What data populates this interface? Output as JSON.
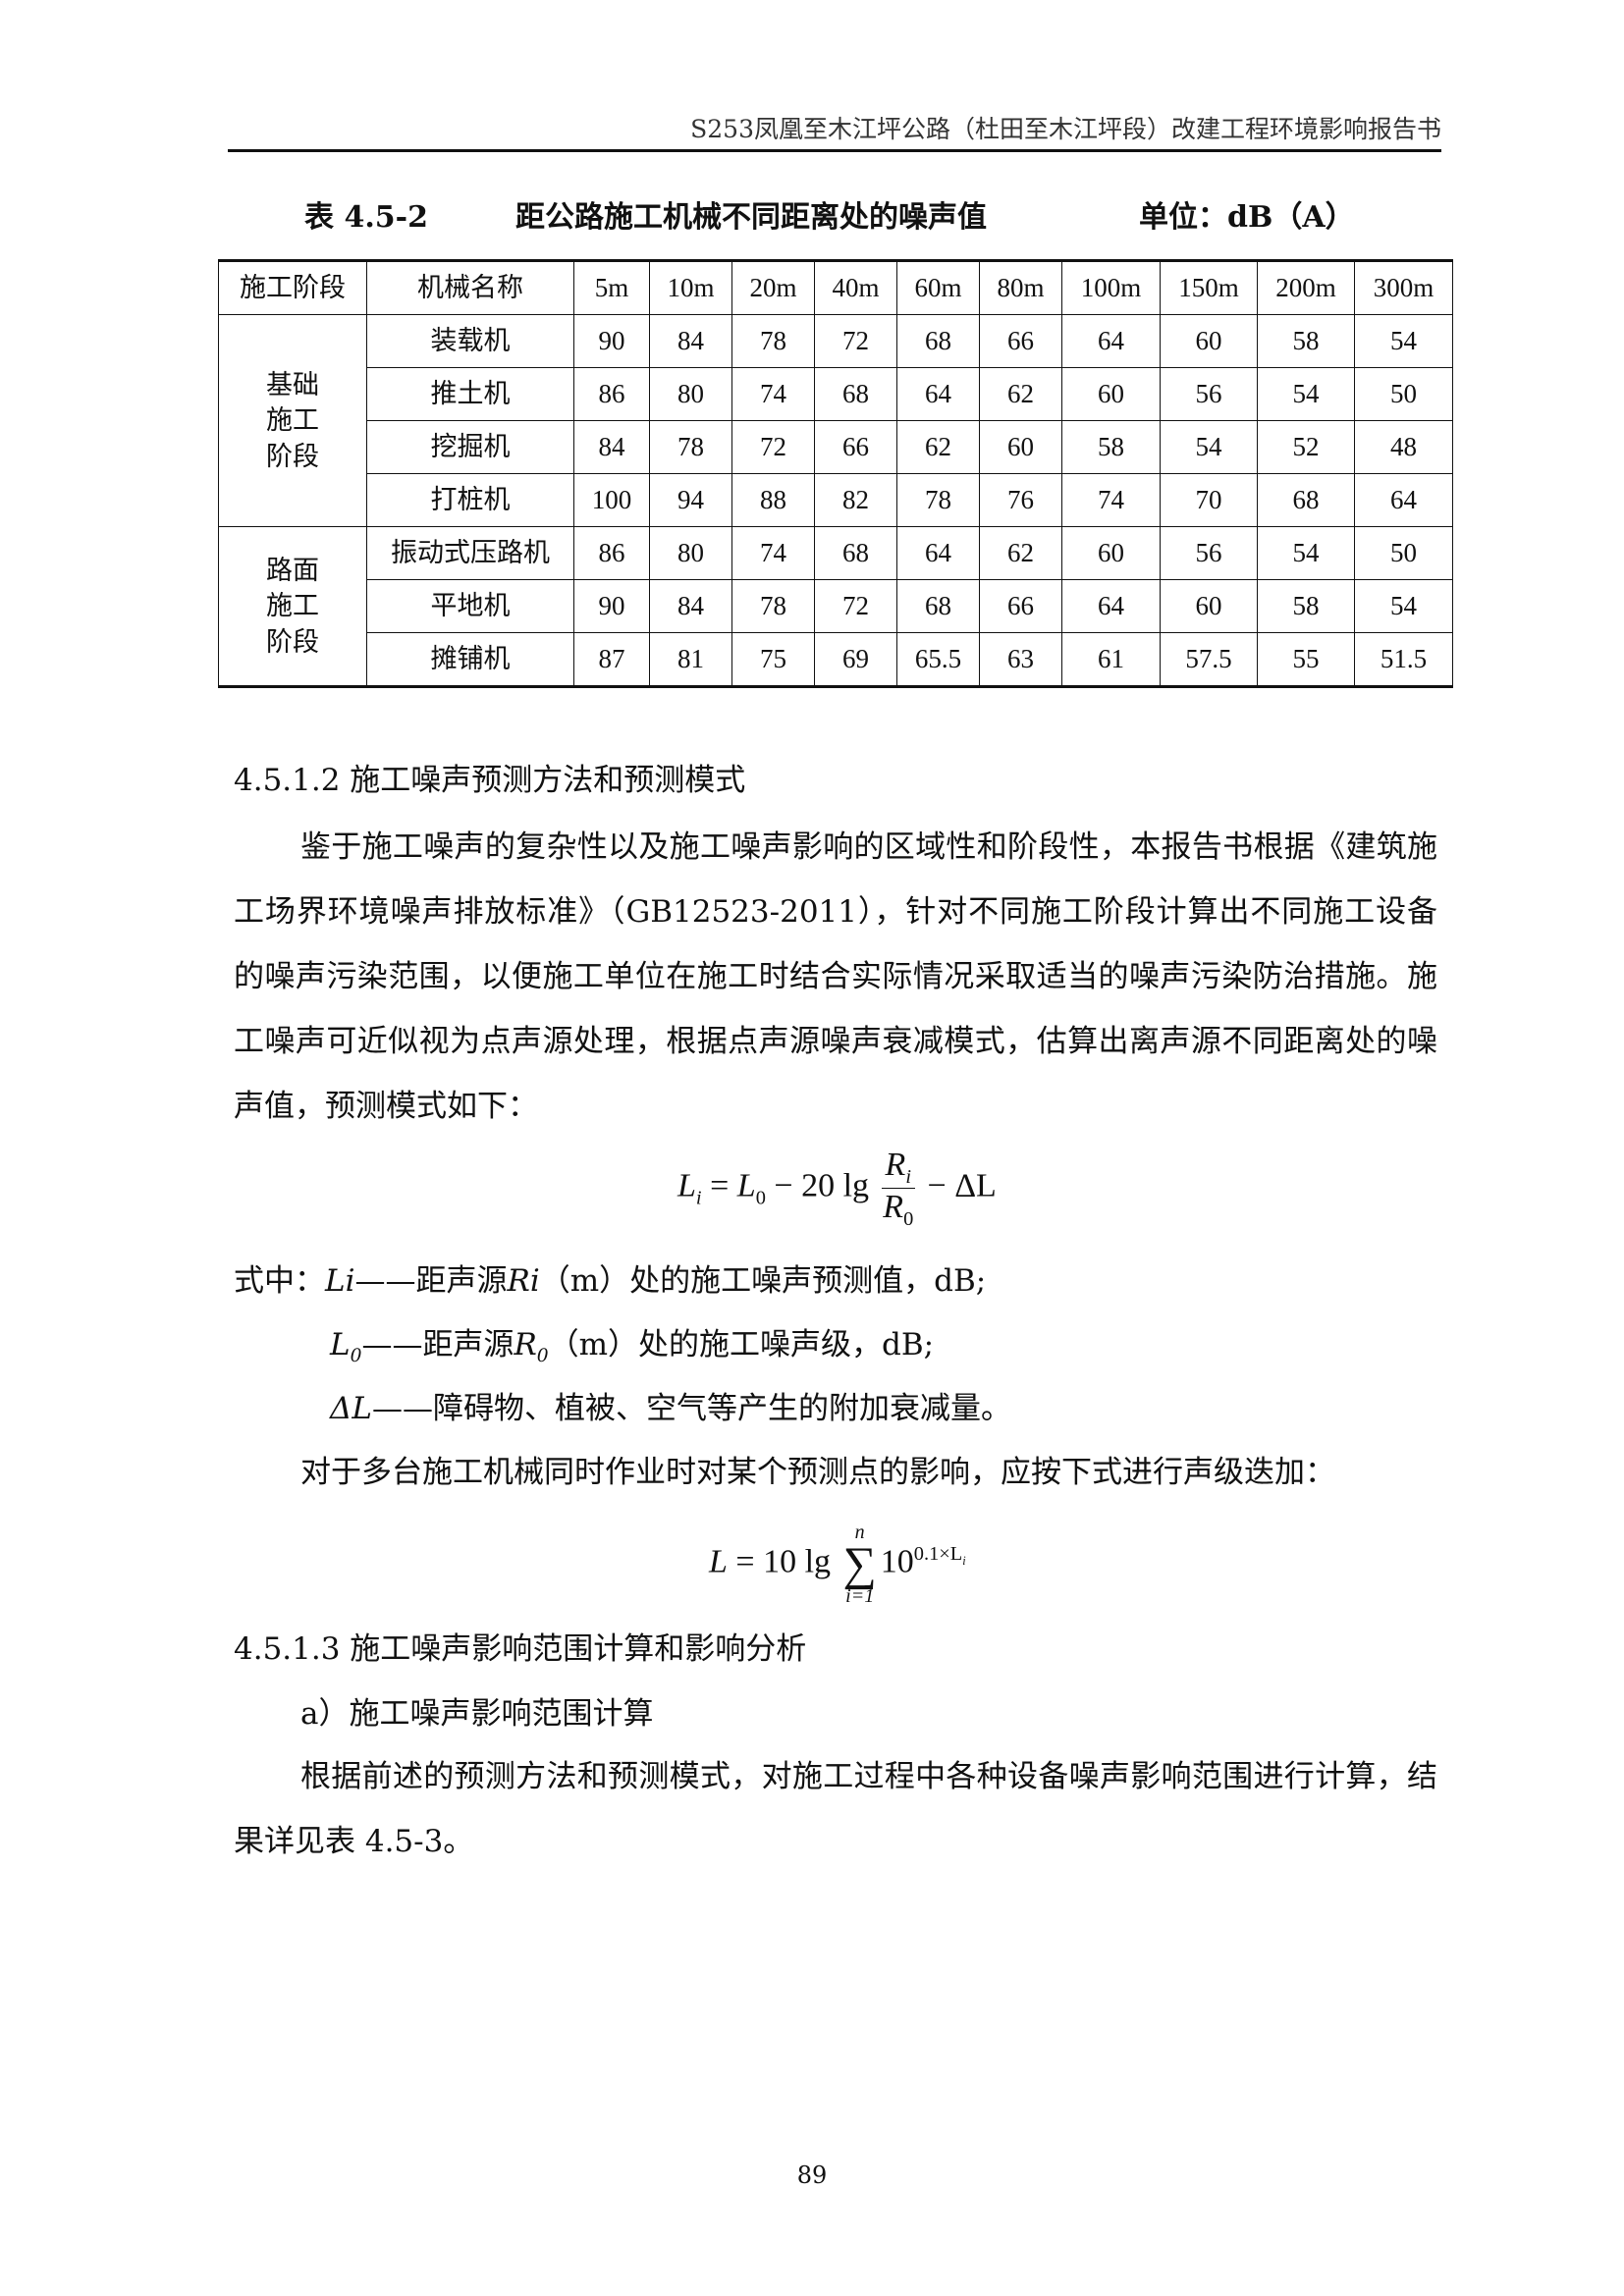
{
  "header": {
    "title": "S253凤凰至木江坪公路（杜田至木江坪段）改建工程环境影响报告书"
  },
  "table": {
    "number": "表 4.5-2",
    "caption": "距公路施工机械不同距离处的噪声值",
    "unit": "单位：dB（A）",
    "columns": [
      "施工阶段",
      "机械名称",
      "5m",
      "10m",
      "20m",
      "40m",
      "60m",
      "80m",
      "100m",
      "150m",
      "200m",
      "300m"
    ],
    "groups": [
      {
        "stage": "基础\n施工\n阶段",
        "rows": [
          {
            "machine": "装载机",
            "values": [
              "90",
              "84",
              "78",
              "72",
              "68",
              "66",
              "64",
              "60",
              "58",
              "54"
            ]
          },
          {
            "machine": "推土机",
            "values": [
              "86",
              "80",
              "74",
              "68",
              "64",
              "62",
              "60",
              "56",
              "54",
              "50"
            ]
          },
          {
            "machine": "挖掘机",
            "values": [
              "84",
              "78",
              "72",
              "66",
              "62",
              "60",
              "58",
              "54",
              "52",
              "48"
            ]
          },
          {
            "machine": "打桩机",
            "values": [
              "100",
              "94",
              "88",
              "82",
              "78",
              "76",
              "74",
              "70",
              "68",
              "64"
            ]
          }
        ]
      },
      {
        "stage": "路面\n施工\n阶段",
        "rows": [
          {
            "machine": "振动式压路机",
            "values": [
              "86",
              "80",
              "74",
              "68",
              "64",
              "62",
              "60",
              "56",
              "54",
              "50"
            ]
          },
          {
            "machine": "平地机",
            "values": [
              "90",
              "84",
              "78",
              "72",
              "68",
              "66",
              "64",
              "60",
              "58",
              "54"
            ]
          },
          {
            "machine": "摊铺机",
            "values": [
              "87",
              "81",
              "75",
              "69",
              "65.5",
              "63",
              "61",
              "57.5",
              "55",
              "51.5"
            ]
          }
        ]
      }
    ]
  },
  "section1": {
    "heading": "4.5.1.2  施工噪声预测方法和预测模式",
    "paragraph": "鉴于施工噪声的复杂性以及施工噪声影响的区域性和阶段性，本报告书根据《建筑施工场界环境噪声排放标准》（GB12523-2011），针对不同施工阶段计算出不同施工设备的噪声污染范围，以便施工单位在施工时结合实际情况采取适当的噪声污染防治措施。施工噪声可近似视为点声源处理，根据点声源噪声衰减模式，估算出离声源不同距离处的噪声值，预测模式如下：",
    "formula1": {
      "lhs": "L",
      "lhs_sub": "i",
      "l0": "L",
      "l0_sub": "0",
      "coef": "20 lg",
      "num": "R",
      "num_sub": "i",
      "den": "R",
      "den_sub": "0",
      "tail": "ΔL"
    },
    "where_prefix": "式中：",
    "def1": {
      "sym": "Li",
      "text": "——距声源",
      "r": "Ri",
      "rest": "（m）处的施工噪声预测值，dB;"
    },
    "def2": {
      "sym": "L",
      "sym_sub": "0",
      "text": "——距声源",
      "r": "R",
      "r_sub": "0",
      "rest": "（m）处的施工噪声级，dB;"
    },
    "def3": {
      "sym": "ΔL",
      "text": "——障碍物、植被、空气等产生的附加衰减量。"
    },
    "superposition": "对于多台施工机械同时作业时对某个预测点的影响，应按下式进行声级迭加：",
    "formula2": {
      "lhs": "L",
      "coef": "10 lg",
      "sum_top": "n",
      "sum_bottom": "i=1",
      "base": "10",
      "exp": "0.1×L",
      "exp_sub": "i"
    }
  },
  "section2": {
    "heading": "4.5.1.3  施工噪声影响范围计算和影响分析",
    "sub": "a）施工噪声影响范围计算",
    "paragraph": "根据前述的预测方法和预测模式，对施工过程中各种设备噪声影响范围进行计算，结果详见表 4.5-3。"
  },
  "page_number": "89"
}
